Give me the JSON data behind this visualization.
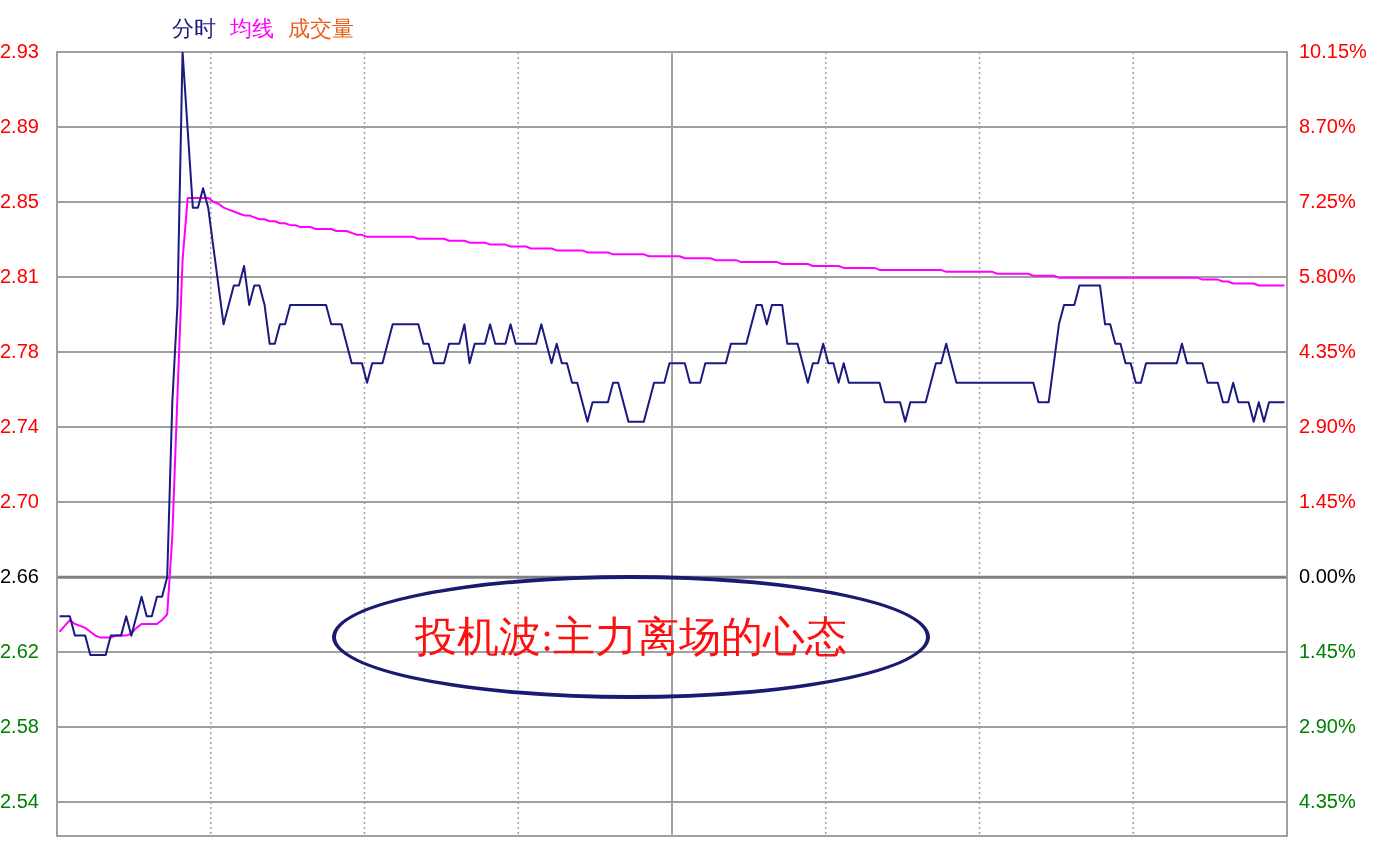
{
  "chart_data": {
    "type": "line",
    "grid": true,
    "marker": "none",
    "categories": [
      null,
      null,
      null,
      null,
      null,
      null,
      null,
      null,
      null,
      null,
      null,
      null,
      null,
      null,
      null,
      null,
      null,
      null,
      null,
      null,
      null,
      null,
      null,
      null,
      null,
      null,
      null,
      null,
      null,
      null,
      null,
      null,
      null,
      null,
      null,
      null,
      null,
      null,
      null,
      null,
      null,
      null,
      null,
      null,
      null,
      null,
      null,
      null,
      null,
      null,
      null,
      null,
      null,
      null,
      null,
      null,
      null,
      null,
      null,
      null,
      null,
      null,
      null,
      null,
      null,
      null,
      null,
      null,
      null,
      null,
      null,
      null,
      null,
      null,
      null,
      null,
      null,
      null,
      null,
      null,
      null,
      null,
      null,
      null,
      null,
      null,
      null,
      null,
      null,
      null,
      null,
      null,
      null,
      null,
      null,
      null,
      null,
      null,
      null,
      null,
      null,
      null,
      null,
      null,
      null,
      null,
      null,
      null,
      null,
      null,
      null,
      null,
      null,
      null,
      null,
      null,
      null,
      null,
      null,
      null,
      null,
      null,
      null,
      null,
      null,
      null,
      null,
      null,
      null,
      null,
      null,
      null,
      null,
      null,
      null,
      null,
      null,
      null,
      null,
      null,
      null,
      null,
      null,
      null,
      null,
      null,
      null,
      null,
      null,
      null,
      null,
      null,
      null,
      null,
      null,
      null,
      null,
      null,
      null,
      null,
      null,
      null,
      null,
      null,
      null,
      null,
      null,
      null,
      null,
      null,
      null,
      null,
      null,
      null,
      null,
      null,
      null,
      null,
      null,
      null,
      null,
      null,
      null,
      null,
      null,
      null,
      null,
      null,
      null,
      null,
      null,
      null,
      null,
      null,
      null,
      null,
      null,
      null,
      null,
      null,
      null,
      null,
      null,
      null,
      null,
      null,
      null,
      null,
      null,
      null,
      null,
      null,
      null,
      null,
      null,
      null,
      null,
      null,
      null,
      null,
      null,
      null,
      null,
      null,
      null,
      null,
      null,
      null,
      null,
      null,
      null,
      null,
      null,
      null,
      null,
      null,
      null,
      null,
      null,
      null
    ],
    "ylim": [
      2.527,
      2.93
    ],
    "yticks": [
      {
        "value": 2.93,
        "label": "2.93"
      },
      {
        "value": 2.8914,
        "label": "2.89"
      },
      {
        "value": 2.8529,
        "label": "2.85"
      },
      {
        "value": 2.8143,
        "label": "2.81"
      },
      {
        "value": 2.7757,
        "label": "2.78"
      },
      {
        "value": 2.7371,
        "label": "2.74"
      },
      {
        "value": 2.6986,
        "label": "2.70"
      },
      {
        "value": 2.66,
        "label": "2.66"
      },
      {
        "value": 2.6214,
        "label": "2.62"
      },
      {
        "value": 2.5829,
        "label": "2.58"
      },
      {
        "value": 2.5443,
        "label": "2.54"
      }
    ],
    "y2lim": [
      -5.0,
      10.15
    ],
    "y2ticks": [
      {
        "value": 10.15,
        "label": "10.15%"
      },
      {
        "value": 8.7,
        "label": "8.70%"
      },
      {
        "value": 7.25,
        "label": "7.25%"
      },
      {
        "value": 5.8,
        "label": "5.80%"
      },
      {
        "value": 4.35,
        "label": "4.35%"
      },
      {
        "value": 2.9,
        "label": "2.90%"
      },
      {
        "value": 1.45,
        "label": "1.45%"
      },
      {
        "value": 0,
        "label": "0.00%"
      },
      {
        "value": -1.45,
        "label": "1.45%"
      },
      {
        "value": -2.9,
        "label": "2.90%"
      },
      {
        "value": -4.35,
        "label": "4.35%"
      }
    ],
    "ref_lines": [
      {
        "axis": "y",
        "value": 2.66,
        "label": null,
        "color": "#808080"
      }
    ],
    "annotations": [
      "投机波:主力离场的心态"
    ],
    "series": [
      {
        "name": "分时",
        "color": "#1a1a80",
        "values": [
          2.64,
          2.64,
          2.64,
          2.63,
          2.63,
          2.63,
          2.62,
          2.62,
          2.62,
          2.62,
          2.63,
          2.63,
          2.63,
          2.64,
          2.63,
          2.64,
          2.65,
          2.64,
          2.64,
          2.65,
          2.65,
          2.66,
          2.75,
          2.8,
          2.93,
          2.89,
          2.85,
          2.85,
          2.86,
          2.85,
          2.83,
          2.81,
          2.79,
          2.8,
          2.81,
          2.81,
          2.82,
          2.8,
          2.81,
          2.81,
          2.8,
          2.78,
          2.78,
          2.79,
          2.79,
          2.8,
          2.8,
          2.8,
          2.8,
          2.8,
          2.8,
          2.8,
          2.8,
          2.79,
          2.79,
          2.79,
          2.78,
          2.77,
          2.77,
          2.77,
          2.76,
          2.77,
          2.77,
          2.77,
          2.78,
          2.79,
          2.79,
          2.79,
          2.79,
          2.79,
          2.79,
          2.78,
          2.78,
          2.77,
          2.77,
          2.77,
          2.78,
          2.78,
          2.78,
          2.79,
          2.77,
          2.78,
          2.78,
          2.78,
          2.79,
          2.78,
          2.78,
          2.78,
          2.79,
          2.78,
          2.78,
          2.78,
          2.78,
          2.78,
          2.79,
          2.78,
          2.77,
          2.78,
          2.77,
          2.77,
          2.76,
          2.76,
          2.75,
          2.74,
          2.75,
          2.75,
          2.75,
          2.75,
          2.76,
          2.76,
          2.75,
          2.74,
          2.74,
          2.74,
          2.74,
          2.75,
          2.76,
          2.76,
          2.76,
          2.77,
          2.77,
          2.77,
          2.77,
          2.76,
          2.76,
          2.76,
          2.77,
          2.77,
          2.77,
          2.77,
          2.77,
          2.78,
          2.78,
          2.78,
          2.78,
          2.79,
          2.8,
          2.8,
          2.79,
          2.8,
          2.8,
          2.8,
          2.78,
          2.78,
          2.78,
          2.77,
          2.76,
          2.77,
          2.77,
          2.78,
          2.77,
          2.77,
          2.76,
          2.77,
          2.76,
          2.76,
          2.76,
          2.76,
          2.76,
          2.76,
          2.76,
          2.75,
          2.75,
          2.75,
          2.75,
          2.74,
          2.75,
          2.75,
          2.75,
          2.75,
          2.76,
          2.77,
          2.77,
          2.78,
          2.77,
          2.76,
          2.76,
          2.76,
          2.76,
          2.76,
          2.76,
          2.76,
          2.76,
          2.76,
          2.76,
          2.76,
          2.76,
          2.76,
          2.76,
          2.76,
          2.76,
          2.75,
          2.75,
          2.75,
          2.77,
          2.79,
          2.8,
          2.8,
          2.8,
          2.81,
          2.81,
          2.81,
          2.81,
          2.81,
          2.79,
          2.79,
          2.78,
          2.78,
          2.77,
          2.77,
          2.76,
          2.76,
          2.77,
          2.77,
          2.77,
          2.77,
          2.77,
          2.77,
          2.77,
          2.78,
          2.77,
          2.77,
          2.77,
          2.77,
          2.76,
          2.76,
          2.76,
          2.75,
          2.75,
          2.76,
          2.75,
          2.75,
          2.75,
          2.74,
          2.75,
          2.74,
          2.75,
          2.75,
          2.75,
          2.75
        ]
      },
      {
        "name": "均线",
        "color": "#ff00ff",
        "values": [
          2.632,
          2.635,
          2.638,
          2.636,
          2.635,
          2.634,
          2.632,
          2.63,
          2.629,
          2.629,
          2.629,
          2.63,
          2.63,
          2.63,
          2.631,
          2.634,
          2.636,
          2.636,
          2.636,
          2.636,
          2.638,
          2.641,
          2.681,
          2.753,
          2.823,
          2.855,
          2.855,
          2.855,
          2.855,
          2.855,
          2.853,
          2.852,
          2.85,
          2.849,
          2.848,
          2.847,
          2.846,
          2.846,
          2.845,
          2.844,
          2.844,
          2.843,
          2.843,
          2.842,
          2.842,
          2.841,
          2.841,
          2.84,
          2.84,
          2.84,
          2.839,
          2.839,
          2.839,
          2.839,
          2.838,
          2.838,
          2.838,
          2.837,
          2.836,
          2.836,
          2.835,
          2.835,
          2.835,
          2.835,
          2.835,
          2.835,
          2.835,
          2.835,
          2.835,
          2.835,
          2.834,
          2.834,
          2.834,
          2.834,
          2.834,
          2.834,
          2.833,
          2.833,
          2.833,
          2.833,
          2.832,
          2.832,
          2.832,
          2.832,
          2.831,
          2.831,
          2.831,
          2.831,
          2.83,
          2.83,
          2.83,
          2.83,
          2.829,
          2.829,
          2.829,
          2.829,
          2.829,
          2.828,
          2.828,
          2.828,
          2.828,
          2.828,
          2.828,
          2.827,
          2.827,
          2.827,
          2.827,
          2.827,
          2.826,
          2.826,
          2.826,
          2.826,
          2.826,
          2.826,
          2.826,
          2.825,
          2.825,
          2.825,
          2.825,
          2.825,
          2.825,
          2.825,
          2.824,
          2.824,
          2.824,
          2.824,
          2.824,
          2.824,
          2.823,
          2.823,
          2.823,
          2.823,
          2.823,
          2.822,
          2.822,
          2.822,
          2.822,
          2.822,
          2.822,
          2.822,
          2.822,
          2.821,
          2.821,
          2.821,
          2.821,
          2.821,
          2.821,
          2.82,
          2.82,
          2.82,
          2.82,
          2.82,
          2.82,
          2.819,
          2.819,
          2.819,
          2.819,
          2.819,
          2.819,
          2.819,
          2.818,
          2.818,
          2.818,
          2.818,
          2.818,
          2.818,
          2.818,
          2.818,
          2.818,
          2.818,
          2.818,
          2.818,
          2.818,
          2.817,
          2.817,
          2.817,
          2.817,
          2.817,
          2.817,
          2.817,
          2.817,
          2.817,
          2.817,
          2.816,
          2.816,
          2.816,
          2.816,
          2.816,
          2.816,
          2.816,
          2.815,
          2.815,
          2.815,
          2.815,
          2.815,
          2.814,
          2.814,
          2.814,
          2.814,
          2.814,
          2.814,
          2.814,
          2.814,
          2.814,
          2.814,
          2.814,
          2.814,
          2.814,
          2.814,
          2.814,
          2.814,
          2.814,
          2.814,
          2.814,
          2.814,
          2.814,
          2.814,
          2.814,
          2.814,
          2.814,
          2.814,
          2.814,
          2.814,
          2.813,
          2.813,
          2.813,
          2.813,
          2.812,
          2.812,
          2.811,
          2.811,
          2.811,
          2.811,
          2.811,
          2.81,
          2.81,
          2.81,
          2.81,
          2.81,
          2.81
        ]
      },
      {
        "name": "成交量",
        "color": "#e8601c",
        "values": [
          null,
          null,
          null,
          null,
          null,
          null,
          null,
          null,
          null,
          null,
          null,
          null,
          null,
          null,
          null,
          null,
          null,
          null,
          null,
          null,
          null,
          null,
          null,
          null,
          null,
          null,
          null,
          null,
          null,
          null,
          null,
          null,
          null,
          null,
          null,
          null,
          null,
          null,
          null,
          null,
          null,
          null,
          null,
          null,
          null,
          null,
          null,
          null,
          null,
          null,
          null,
          null,
          null,
          null,
          null,
          null,
          null,
          null,
          null,
          null,
          null,
          null,
          null,
          null,
          null,
          null,
          null,
          null,
          null,
          null,
          null,
          null,
          null,
          null,
          null,
          null,
          null,
          null,
          null,
          null,
          null,
          null,
          null,
          null,
          null,
          null,
          null,
          null,
          null,
          null,
          null,
          null,
          null,
          null,
          null,
          null,
          null,
          null,
          null,
          null,
          null,
          null,
          null,
          null,
          null,
          null,
          null,
          null,
          null,
          null,
          null,
          null,
          null,
          null,
          null,
          null,
          null,
          null,
          null,
          null,
          null,
          null,
          null,
          null,
          null,
          null,
          null,
          null,
          null,
          null,
          null,
          null,
          null,
          null,
          null,
          null,
          null,
          null,
          null,
          null,
          null,
          null,
          null,
          null,
          null,
          null,
          null,
          null,
          null,
          null,
          null,
          null,
          null,
          null,
          null,
          null,
          null,
          null,
          null,
          null,
          null,
          null,
          null,
          null,
          null,
          null,
          null,
          null,
          null,
          null,
          null,
          null,
          null,
          null,
          null,
          null,
          null,
          null,
          null,
          null,
          null,
          null,
          null,
          null,
          null,
          null,
          null,
          null,
          null,
          null,
          null,
          null,
          null,
          null,
          null,
          null,
          null,
          null,
          null,
          null,
          null,
          null,
          null,
          null,
          null,
          null,
          null,
          null,
          null,
          null,
          null,
          null,
          null,
          null,
          null,
          null,
          null,
          null,
          null,
          null,
          null,
          null,
          null,
          null,
          null,
          null,
          null,
          null,
          null,
          null,
          null,
          null,
          null,
          null,
          null,
          null,
          null,
          null,
          null,
          null
        ]
      }
    ]
  }
}
